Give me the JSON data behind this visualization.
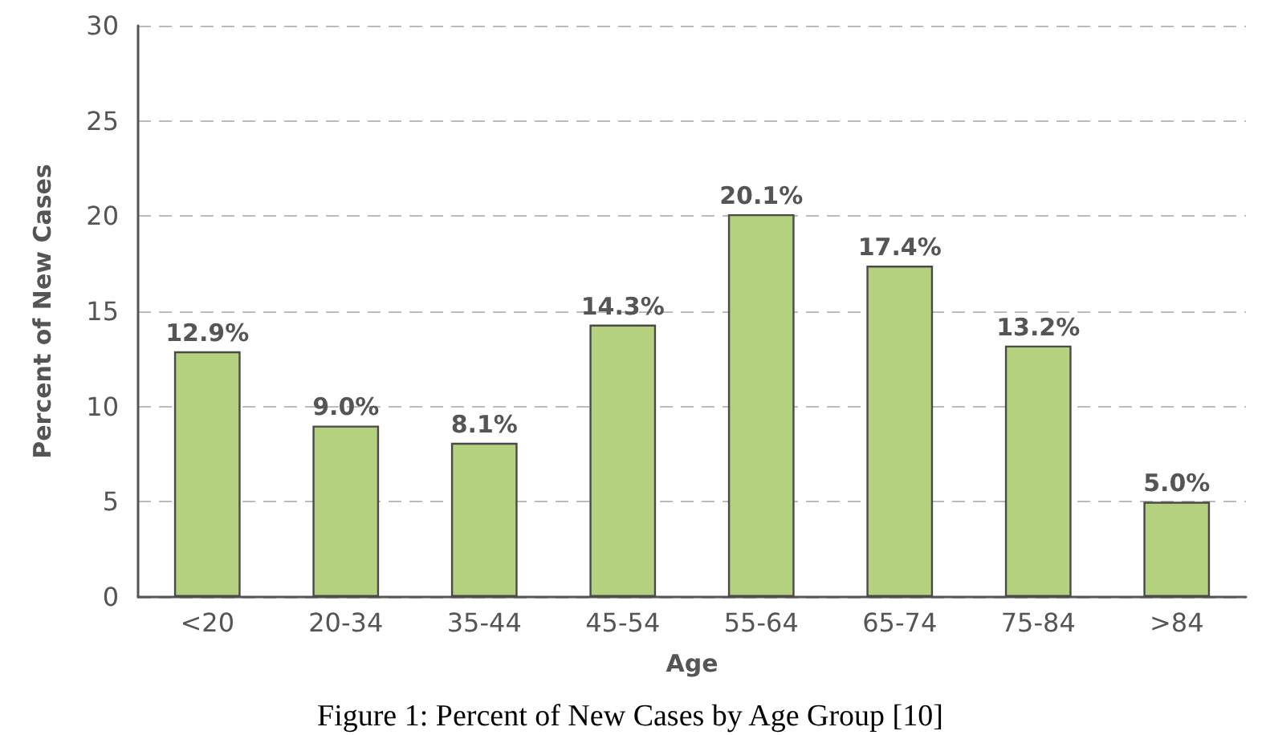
{
  "chart_data": {
    "type": "bar",
    "xlabel": "Age",
    "ylabel": "Percent of New Cases",
    "categories": [
      "<20",
      "20-34",
      "35-44",
      "45-54",
      "55-64",
      "65-74",
      "75-84",
      ">84"
    ],
    "values": [
      12.9,
      9.0,
      8.1,
      14.3,
      20.1,
      17.4,
      13.2,
      5.0
    ],
    "value_labels": [
      "12.9%",
      "9.0%",
      "8.1%",
      "14.3%",
      "20.1%",
      "17.4%",
      "13.2%",
      "5.0%"
    ],
    "color": "#b3d17f",
    "ylim": [
      0,
      30
    ],
    "yticks": [
      0,
      5,
      10,
      15,
      20,
      25,
      30
    ],
    "grid": "y",
    "annotations": [
      "Figure 1: Percent of New Cases by Age Group [10]"
    ]
  }
}
